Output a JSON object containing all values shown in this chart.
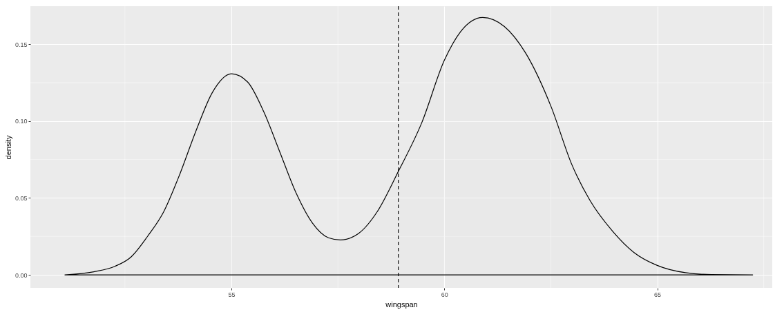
{
  "chart_data": {
    "type": "area",
    "xlabel": "wingspan",
    "ylabel": "density",
    "xlim": [
      50.28,
      67.7
    ],
    "ylim": [
      -0.0085,
      0.1748
    ],
    "xticks": [
      55,
      60,
      65
    ],
    "yticks": [
      {
        "value": 0,
        "label": "0.00"
      },
      {
        "value": 0.05,
        "label": "0.05"
      },
      {
        "value": 0.1,
        "label": "0.10"
      },
      {
        "value": 0.15,
        "label": "0.15"
      }
    ],
    "grid": true,
    "x": [
      51.09,
      51.77,
      52.27,
      52.65,
      53.03,
      53.41,
      53.79,
      54.17,
      54.55,
      55.0,
      55.38,
      55.76,
      56.14,
      56.52,
      56.9,
      57.28,
      57.56,
      57.98,
      58.42,
      58.92,
      59.47,
      60.0,
      60.38,
      60.9,
      61.41,
      61.9,
      62.51,
      62.99,
      63.42,
      63.96,
      64.45,
      65.0,
      65.66,
      66.27,
      67.24
    ],
    "series": [
      {
        "color": "#000000",
        "values": [
          0.0,
          0.002,
          0.0056,
          0.0118,
          0.025,
          0.041,
          0.0656,
          0.0938,
          0.1185,
          0.1308,
          0.1255,
          0.1061,
          0.0797,
          0.0532,
          0.0338,
          0.0241,
          0.0227,
          0.0268,
          0.0409,
          0.0673,
          0.099,
          0.1396,
          0.1582,
          0.1675,
          0.1616,
          0.1447,
          0.1092,
          0.072,
          0.0484,
          0.0281,
          0.0146,
          0.0061,
          0.0014,
          0.0002,
          0.0
        ]
      }
    ],
    "ref_lines": [
      {
        "axis": "x",
        "value": 58.92,
        "line_style": "dashed",
        "color": "#000000"
      }
    ]
  }
}
